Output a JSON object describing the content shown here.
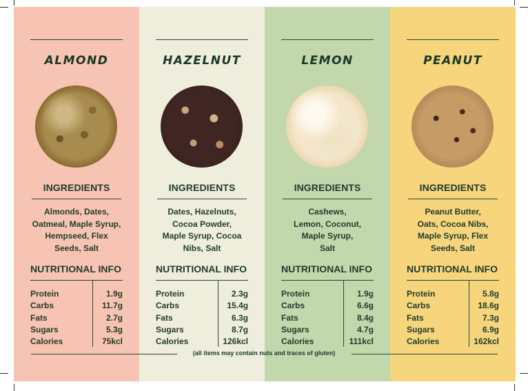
{
  "columns": [
    {
      "key": "almond",
      "flavor": "ALMOND",
      "ingredients_heading": "INGREDIENTS",
      "ingredients": [
        "Almonds, Dates,",
        "Oatmeal, Maple Syrup,",
        "Hempseed, Flex",
        "Seeds, Salt"
      ],
      "nutrition_heading": "NUTRITIONAL INFO",
      "nutrition": [
        {
          "label": "Protein",
          "value": "1.9g"
        },
        {
          "label": "Carbs",
          "value": "11.7g"
        },
        {
          "label": "Fats",
          "value": "2.7g"
        },
        {
          "label": "Sugars",
          "value": "5.3g"
        },
        {
          "label": "Calories",
          "value": "75kcl"
        }
      ],
      "bg_color": "#f7c4b3"
    },
    {
      "key": "hazelnut",
      "flavor": "HAZELNUT",
      "ingredients_heading": "INGREDIENTS",
      "ingredients": [
        "Dates, Hazelnuts,",
        "Cocoa Powder,",
        "Maple Syrup, Cocoa",
        "Nibs, Salt"
      ],
      "nutrition_heading": "NUTRITIONAL INFO",
      "nutrition": [
        {
          "label": "Protein",
          "value": "2.3g"
        },
        {
          "label": "Carbs",
          "value": "15.4g"
        },
        {
          "label": "Fats",
          "value": "6.3g"
        },
        {
          "label": "Sugars",
          "value": "8.7g"
        },
        {
          "label": "Calories",
          "value": "126kcl"
        }
      ],
      "bg_color": "#efeedd"
    },
    {
      "key": "lemon",
      "flavor": "LEMON",
      "ingredients_heading": "INGREDIENTS",
      "ingredients": [
        "Cashews,",
        "Lemon, Coconut,",
        "Maple Syrup,",
        "Salt"
      ],
      "nutrition_heading": "NUTRITIONAL INFO",
      "nutrition": [
        {
          "label": "Protein",
          "value": "1.9g"
        },
        {
          "label": "Carbs",
          "value": "6.6g"
        },
        {
          "label": "Fats",
          "value": "8.4g"
        },
        {
          "label": "Sugars",
          "value": "4.7g"
        },
        {
          "label": "Calories",
          "value": "111kcl"
        }
      ],
      "bg_color": "#c3d7ad"
    },
    {
      "key": "peanut",
      "flavor": "PEANUT",
      "ingredients_heading": "INGREDIENTS",
      "ingredients": [
        "Peanut Butter,",
        "Oats, Cocoa Nibs,",
        "Maple Syrup, Flex",
        "Seeds, Salt"
      ],
      "nutrition_heading": "NUTRITIONAL INFO",
      "nutrition": [
        {
          "label": "Protein",
          "value": "5.8g"
        },
        {
          "label": "Carbs",
          "value": "18.6g"
        },
        {
          "label": "Fats",
          "value": "7.3g"
        },
        {
          "label": "Sugars",
          "value": "6.9g"
        },
        {
          "label": "Calories",
          "value": "162kcl"
        }
      ],
      "bg_color": "#f6d57c"
    }
  ],
  "footer_note": "(all items may contain nuts and traces of gluten)",
  "text_color": "#1f3a2b"
}
